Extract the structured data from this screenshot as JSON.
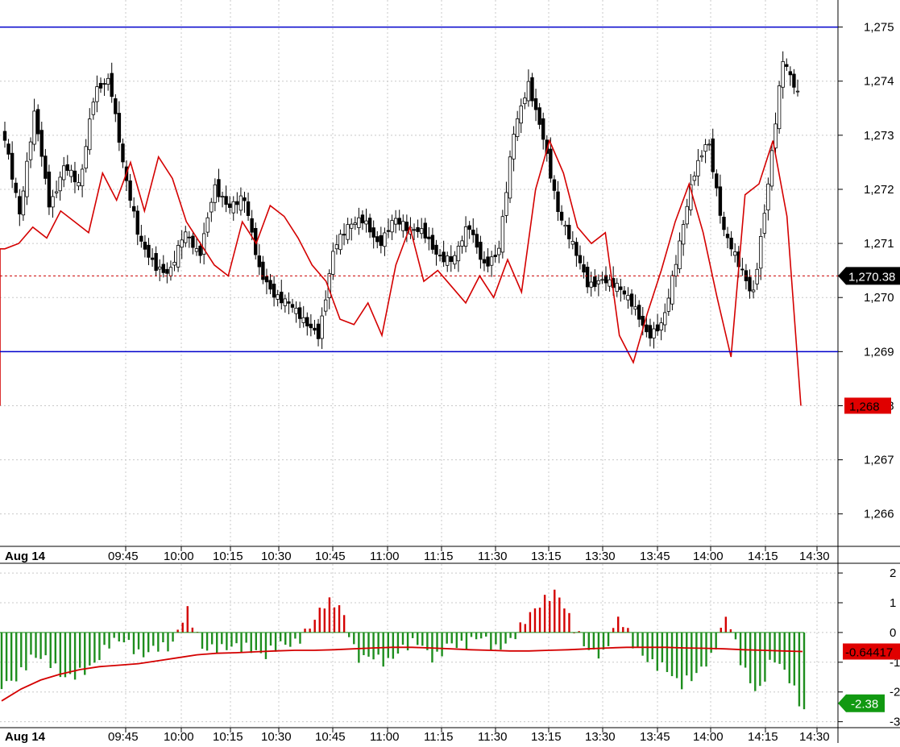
{
  "chart_data": [
    {
      "panel": "price",
      "type": "candlestick",
      "date_label": "Aug 14",
      "x_ticks": [
        "09:45",
        "10:00",
        "10:15",
        "10:30",
        "10:45",
        "11:00",
        "11:15",
        "11:30",
        "13:15",
        "13:30",
        "13:45",
        "14:00",
        "14:15",
        "14:30"
      ],
      "y_ticks": [
        "1,275",
        "1,274",
        "1,273",
        "1,272",
        "1,271",
        "1,270",
        "1,269",
        "1,268",
        "1,267",
        "1,266"
      ],
      "ylim": [
        1265.4,
        1275.5
      ],
      "grid": true,
      "candle_anchors": [
        1273.0,
        1271.5,
        1273.4,
        1271.7,
        1272.5,
        1272.0,
        1273.8,
        1274.1,
        1272.3,
        1271.0,
        1270.6,
        1270.5,
        1271.2,
        1270.7,
        1272.1,
        1271.7,
        1271.8,
        1270.5,
        1270.1,
        1269.9,
        1269.5,
        1269.3,
        1271.0,
        1271.3,
        1271.4,
        1271.0,
        1271.5,
        1271.2,
        1271.2,
        1270.8,
        1270.7,
        1271.3,
        1270.6,
        1270.9,
        1273.0,
        1273.9,
        1273.0,
        1271.6,
        1270.9,
        1270.2,
        1270.4,
        1270.2,
        1269.8,
        1269.3,
        1269.6,
        1270.8,
        1272.2,
        1273.0,
        1271.3,
        1270.6,
        1270.0,
        1272.1,
        1274.4,
        1273.7
      ],
      "horizontal_lines": [
        1275.0,
        1269.0
      ],
      "current_price_marker": {
        "value": 1270.4,
        "label": "1,270.38"
      },
      "overlay_line": {
        "color": "#d40000",
        "values": [
          1270.9,
          1271.0,
          1271.3,
          1271.1,
          1271.6,
          1271.4,
          1271.2,
          1272.3,
          1271.8,
          1272.5,
          1271.6,
          1272.6,
          1272.2,
          1271.4,
          1271.0,
          1270.6,
          1270.4,
          1271.4,
          1271.0,
          1271.7,
          1271.5,
          1271.1,
          1270.6,
          1270.3,
          1269.6,
          1269.5,
          1269.9,
          1269.3,
          1270.6,
          1271.3,
          1270.3,
          1270.5,
          1270.2,
          1269.9,
          1270.4,
          1270.0,
          1270.7,
          1270.1,
          1272.0,
          1272.9,
          1272.3,
          1271.3,
          1271.0,
          1271.2,
          1269.3,
          1268.8,
          1269.7,
          1270.5,
          1271.4,
          1272.1,
          1271.2,
          1270.0,
          1268.9,
          1271.9,
          1272.1,
          1272.9,
          1271.5,
          1268.0
        ]
      },
      "last_value_marker": {
        "value": 1268.0,
        "label": "1,268"
      }
    },
    {
      "panel": "histogram",
      "type": "bar",
      "x_ticks": [
        "09:45",
        "10:00",
        "10:15",
        "10:30",
        "10:45",
        "11:00",
        "11:15",
        "11:30",
        "13:15",
        "13:30",
        "13:45",
        "14:00",
        "14:15",
        "14:30"
      ],
      "y_ticks": [
        "2",
        "1",
        "0",
        "-1",
        "-2",
        "-3"
      ],
      "ylim": [
        -3.2,
        2.3
      ],
      "histogram_anchors": [
        -1.6,
        -1.4,
        -0.9,
        -1.1,
        -1.5,
        -1.2,
        -1.0,
        -0.5,
        -0.4,
        -0.7,
        -0.3,
        -0.5,
        0.6,
        -0.6,
        -0.4,
        -0.3,
        -0.6,
        -1.0,
        -0.4,
        -0.2,
        0.3,
        0.9,
        0.7,
        -0.8,
        -0.6,
        -1.0,
        -0.7,
        -0.4,
        -0.8,
        -0.2,
        -0.5,
        -0.3,
        -0.6,
        -0.1,
        0.6,
        0.9,
        1.2,
        0.3,
        -0.4,
        -0.7,
        0.4,
        -0.6,
        -0.9,
        -1.0,
        -1.8,
        -1.6,
        -0.9,
        0.8,
        -1.0,
        -2.2,
        -1.0,
        -1.5,
        -2.5
      ],
      "red_line": {
        "color": "#d40000",
        "values": [
          -2.3,
          -1.9,
          -1.6,
          -1.4,
          -1.25,
          -1.15,
          -1.1,
          -1.05,
          -0.95,
          -0.85,
          -0.75,
          -0.7,
          -0.68,
          -0.65,
          -0.62,
          -0.6,
          -0.6,
          -0.58,
          -0.55,
          -0.52,
          -0.5,
          -0.5,
          -0.52,
          -0.55,
          -0.58,
          -0.6,
          -0.62,
          -0.62,
          -0.6,
          -0.58,
          -0.55,
          -0.52,
          -0.5,
          -0.5,
          -0.5,
          -0.52,
          -0.53,
          -0.55,
          -0.58,
          -0.6,
          -0.62,
          -0.64
        ]
      },
      "zero_line": 0,
      "current_value_markers": [
        {
          "value": -0.64,
          "label": "-0.64417",
          "color": "#e00000"
        },
        {
          "value": -2.38,
          "label": "-2.38",
          "color": "#119911"
        }
      ]
    }
  ],
  "colors": {
    "horizontal_line": "#0000cc",
    "dashed_line": "#cc0000",
    "bar_positive": "#d40000",
    "bar_negative": "#1e8e1e",
    "grid": "#c8c8c8"
  }
}
